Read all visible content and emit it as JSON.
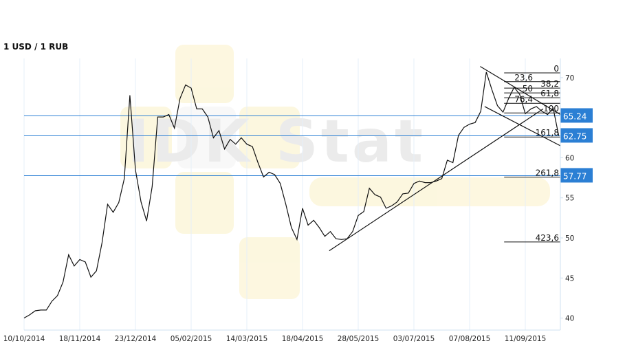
{
  "chart_data": {
    "type": "line",
    "title": "1 USD / 1 RUB",
    "watermark_text": "IDK Stat",
    "x_tick_labels": [
      "10/10/2014",
      "18/11/2014",
      "23/12/2014",
      "05/02/2015",
      "14/03/2015",
      "18/04/2015",
      "28/05/2015",
      "03/07/2015",
      "07/08/2015",
      "11/09/2015"
    ],
    "y_ticks": [
      40,
      45,
      50,
      55,
      60,
      70
    ],
    "ylim": [
      38.5,
      72.4
    ],
    "grid": {
      "vertical": true,
      "horizontal": false
    },
    "samples_per_tick_interval": 10,
    "values": [
      40.0,
      40.4,
      40.9,
      41.0,
      41.0,
      42.1,
      42.8,
      44.5,
      47.9,
      46.5,
      47.3,
      47.0,
      45.1,
      45.9,
      49.4,
      54.2,
      53.2,
      54.4,
      57.4,
      67.8,
      58.5,
      54.5,
      52.1,
      56.4,
      65.1,
      65.1,
      65.4,
      63.7,
      67.4,
      69.1,
      68.7,
      66.1,
      66.1,
      65.1,
      62.5,
      63.4,
      61.1,
      62.3,
      61.7,
      62.5,
      61.7,
      61.4,
      59.4,
      57.6,
      58.2,
      57.9,
      56.8,
      54.2,
      51.3,
      49.8,
      53.7,
      51.6,
      52.2,
      51.3,
      50.2,
      50.8,
      49.9,
      49.8,
      49.9,
      50.8,
      52.8,
      53.3,
      56.2,
      55.4,
      55.1,
      53.7,
      54.0,
      54.5,
      55.5,
      55.6,
      56.8,
      57.1,
      56.9,
      56.9,
      57.1,
      57.4,
      59.7,
      59.4,
      62.8,
      63.8,
      64.2,
      64.4,
      65.8,
      70.7,
      68.5,
      66.5,
      65.7,
      67.4,
      68.8,
      67.9,
      65.5,
      66.1,
      66.4,
      65.8,
      65.4,
      66.2,
      62.75
    ],
    "line_color": "#111111",
    "price_levels": [
      {
        "label": "65.24",
        "value": 65.24
      },
      {
        "label": "62.75",
        "value": 62.75
      },
      {
        "label": "57.77",
        "value": 57.77
      }
    ],
    "level_color": "#2b7fd4",
    "fibonacci": {
      "start_index": 86.2,
      "levels": [
        {
          "label": "0",
          "value": 70.6
        },
        {
          "label": "23,6",
          "value": 69.5
        },
        {
          "label": "38,2",
          "value": 68.7
        },
        {
          "label": "50",
          "value": 68.1
        },
        {
          "label": "61,8",
          "value": 67.5
        },
        {
          "label": "76,4",
          "value": 66.8
        },
        {
          "label": "100",
          "value": 65.6
        },
        {
          "label": "161,8",
          "value": 62.6
        },
        {
          "label": "261,8",
          "value": 57.6
        },
        {
          "label": "423,6",
          "value": 49.5
        }
      ]
    },
    "trend_lines": [
      {
        "name": "support",
        "from": [
          54.8,
          48.4
        ],
        "to": [
          93.2,
          66.1
        ]
      },
      {
        "name": "channel-upper",
        "from": [
          81.9,
          71.4
        ],
        "to": [
          96.3,
          65.4
        ]
      },
      {
        "name": "channel-lower",
        "from": [
          82.7,
          66.4
        ],
        "to": [
          96.3,
          61.5
        ]
      }
    ]
  }
}
